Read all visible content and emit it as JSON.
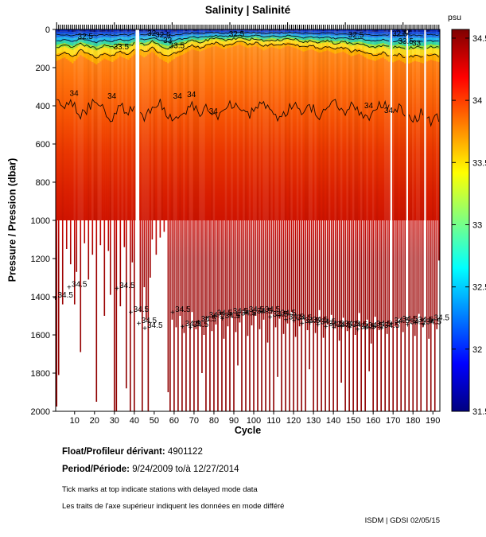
{
  "title": "Salinity | Salinité",
  "footer": {
    "float_label": "Float/Profileur dérivant:",
    "float_value": "4901122",
    "period_label": "Period/Période:",
    "period_value": "9/24/2009  to/à  12/27/2014",
    "note_en": "Tick marks at top indicate stations with delayed mode data",
    "note_fr": "Les traits de l'axe supérieur indiquent les données en mode différé",
    "credit": "ISDM | GDSI  02/05/15"
  },
  "chart_data": {
    "type": "heatmap",
    "title": "Salinity | Salinité",
    "xlabel": "Cycle",
    "ylabel": "Pressure / Pression (dbar)",
    "x_range": [
      1,
      193
    ],
    "y_range": [
      0,
      2000
    ],
    "x_ticks": [
      10,
      20,
      30,
      40,
      50,
      60,
      70,
      80,
      90,
      100,
      110,
      120,
      130,
      140,
      150,
      160,
      170,
      180,
      190
    ],
    "y_ticks": [
      0,
      200,
      400,
      600,
      800,
      1000,
      1200,
      1400,
      1600,
      1800,
      2000
    ],
    "n_cycles": 193,
    "grid": false,
    "colorbar": {
      "label": "psu",
      "vmin": 31.5,
      "vmax": 34.57,
      "ticks": [
        34.5,
        34,
        33.5,
        33,
        32.5,
        32,
        31.5
      ],
      "colormap": "jet",
      "stops": [
        [
          0,
          "#7F0000"
        ],
        [
          0.125,
          "#FF0000"
        ],
        [
          0.375,
          "#FFFF00"
        ],
        [
          0.625,
          "#00FFFF"
        ],
        [
          0.875,
          "#0000FF"
        ],
        [
          1,
          "#00007F"
        ]
      ]
    },
    "surface_layers": [
      {
        "sal": 31.7,
        "to": 9,
        "color": "#0A2BC4",
        "alt": "#06127E"
      },
      {
        "sal": 31.9,
        "to": 18,
        "color": "#1048E0"
      },
      {
        "sal": 32.2,
        "to": 32,
        "color": "#1E78F0"
      },
      {
        "sal": 32.5,
        "to": 48,
        "color": "#20B8F0"
      },
      {
        "sal": 32.8,
        "to": 60,
        "color": "#30D8A8"
      },
      {
        "sal": 33.1,
        "to": 74,
        "color": "#A0E838"
      },
      {
        "sal": 33.5,
        "to": 96,
        "color": "#FFE020"
      },
      {
        "sal": 33.7,
        "to": 122,
        "color": "#FFAE00"
      }
    ],
    "field_gradient": [
      [
        0,
        "#FF9A28"
      ],
      [
        0.12,
        "#FF8818"
      ],
      [
        0.25,
        "#FF740C"
      ],
      [
        0.45,
        "#F75403"
      ],
      [
        0.65,
        "#E93500"
      ],
      [
        0.85,
        "#DA1F00"
      ],
      [
        1,
        "#CF1300"
      ]
    ],
    "bar_gradient": [
      [
        0,
        "#C90500"
      ],
      [
        0.2,
        "#A00000"
      ],
      [
        1,
        "#8C0000"
      ]
    ],
    "surface_wiggle_step": 4,
    "surface_wiggle": [
      1.35,
      1.2,
      1.45,
      1.1,
      1.3,
      1.5,
      1.25,
      1.4,
      1.15,
      1.3,
      1.0,
      1.2,
      0.95,
      1.25,
      1.45,
      1.2,
      1.05,
      0.85,
      0.95,
      0.8,
      0.7,
      0.85,
      0.75,
      0.65,
      0.8,
      0.7,
      0.9,
      0.75,
      0.85,
      0.7,
      0.8,
      0.95,
      0.85,
      1.0,
      0.9,
      1.05,
      0.95,
      1.15,
      1.05,
      1.25,
      1.35,
      1.2,
      1.45,
      1.3,
      1.5,
      1.35,
      1.45,
      1.3,
      1.4
    ],
    "contour_levels_depths": [
      22,
      45,
      68,
      100
    ],
    "contour34_depths": [
      340,
      420,
      380,
      450,
      410,
      360,
      430,
      470,
      400,
      440,
      380,
      460,
      420,
      390,
      450,
      480,
      430,
      400,
      440,
      410,
      460,
      430,
      390,
      420,
      450,
      410,
      380,
      430,
      460,
      420,
      390,
      440,
      410,
      450,
      420,
      380,
      430,
      400,
      440,
      460,
      420,
      390,
      430,
      410,
      450,
      470,
      430,
      490,
      460
    ],
    "max_depth_by_cycle": [
      1975,
      1810,
      1000,
      1440,
      1000,
      1150,
      1000,
      1230,
      1000,
      1440,
      1270,
      1000,
      1690,
      1000,
      1120,
      1000,
      1310,
      1000,
      1180,
      1000,
      1950,
      1000,
      1130,
      1000,
      1500,
      1000,
      1160,
      1390,
      1000,
      2000,
      2000,
      1000,
      1450,
      1000,
      1140,
      1880,
      1000,
      2000,
      1220,
      2000,
      0,
      0,
      1480,
      2000,
      1350,
      1520,
      2000,
      1300,
      1100,
      1000,
      1180,
      1000,
      1090,
      1000,
      1060,
      1000,
      1900,
      2000,
      1520,
      2000,
      1560,
      2000,
      1500,
      2000,
      1590,
      2000,
      1540,
      2000,
      1480,
      2000,
      1570,
      2000,
      1530,
      1800,
      1600,
      2000,
      1510,
      2000,
      1580,
      2000,
      1545,
      2000,
      1495,
      2000,
      1620,
      2000,
      1555,
      2000,
      1505,
      2000,
      1585,
      1760,
      1535,
      2000,
      1475,
      2000,
      1605,
      2000,
      1550,
      2000,
      1500,
      2000,
      1570,
      2000,
      1520,
      2000,
      1640,
      2000,
      1490,
      2000,
      1560,
      1820,
      1515,
      2000,
      1595,
      2000,
      1540,
      2000,
      1480,
      2000,
      1610,
      2000,
      1555,
      2000,
      1500,
      2000,
      1575,
      1780,
      1525,
      2000,
      1590,
      2000,
      1470,
      2000,
      1615,
      2000,
      1545,
      2000,
      1495,
      2000,
      1565,
      2000,
      1630,
      1850,
      1510,
      2000,
      1580,
      2000,
      1530,
      2000,
      1600,
      2000,
      1485,
      2000,
      1550,
      2000,
      1520,
      1790,
      1645,
      2000,
      1505,
      2000,
      1575,
      2000,
      1535,
      2000,
      1595,
      2000,
      0,
      2000,
      1555,
      2000,
      1515,
      2000,
      1585,
      2000,
      0,
      2000,
      1540,
      2000,
      1605,
      2000,
      1490,
      2000,
      1560,
      0,
      2000,
      1620,
      2000,
      1530,
      2000,
      1570,
      1210
    ],
    "missing_cycles": [
      41,
      42,
      169,
      177,
      186
    ],
    "contour_labels": [
      {
        "v": "32.5",
        "c": 12,
        "p": 38
      },
      {
        "v": "33.5",
        "c": 30,
        "p": 92
      },
      {
        "v": "32",
        "c": 47,
        "p": 20
      },
      {
        "v": "32.5",
        "c": 51,
        "p": 30
      },
      {
        "v": "33",
        "c": 55,
        "p": 58
      },
      {
        "v": "33.5",
        "c": 58,
        "p": 85
      },
      {
        "v": "32.5",
        "c": 88,
        "p": 26
      },
      {
        "v": "32.5",
        "c": 148,
        "p": 30
      },
      {
        "v": "32.5",
        "c": 170,
        "p": 22
      },
      {
        "v": "32",
        "c": 175,
        "p": 14
      },
      {
        "v": "33.5",
        "c": 173,
        "p": 62
      },
      {
        "v": "33",
        "c": 180,
        "p": 72
      },
      {
        "v": "34",
        "c": 8,
        "p": 335
      },
      {
        "v": "34",
        "c": 27,
        "p": 350
      },
      {
        "v": "34",
        "c": 60,
        "p": 350
      },
      {
        "v": "34",
        "c": 67,
        "p": 342
      },
      {
        "v": "34",
        "c": 78,
        "p": 430
      },
      {
        "v": "34",
        "c": 156,
        "p": 400
      },
      {
        "v": "34",
        "c": 166,
        "p": 425
      }
    ],
    "deep_contour_value": "34.5",
    "deep_contour_labels": [
      [
        2,
        1395
      ],
      [
        9,
        1340
      ],
      [
        33,
        1345
      ],
      [
        40,
        1470
      ],
      [
        44,
        1530
      ],
      [
        47,
        1555
      ],
      [
        61,
        1470
      ],
      [
        66,
        1545
      ],
      [
        70,
        1550
      ],
      [
        74,
        1520
      ],
      [
        78,
        1500
      ],
      [
        82,
        1490
      ],
      [
        86,
        1505
      ],
      [
        90,
        1480
      ],
      [
        94,
        1490
      ],
      [
        98,
        1470
      ],
      [
        102,
        1480
      ],
      [
        106,
        1470
      ],
      [
        110,
        1495
      ],
      [
        114,
        1490
      ],
      [
        118,
        1510
      ],
      [
        122,
        1515
      ],
      [
        126,
        1530
      ],
      [
        130,
        1525
      ],
      [
        134,
        1535
      ],
      [
        138,
        1545
      ],
      [
        142,
        1550
      ],
      [
        146,
        1545
      ],
      [
        150,
        1550
      ],
      [
        154,
        1560
      ],
      [
        158,
        1555
      ],
      [
        162,
        1545
      ],
      [
        166,
        1555
      ],
      [
        171,
        1530
      ],
      [
        175,
        1520
      ],
      [
        179,
        1535
      ],
      [
        183,
        1525
      ],
      [
        187,
        1535
      ],
      [
        191,
        1515
      ]
    ]
  }
}
